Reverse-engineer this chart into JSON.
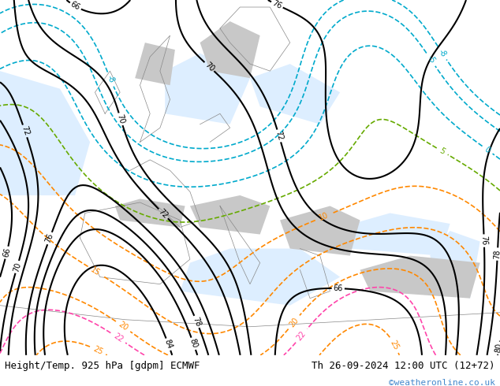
{
  "title_left": "Height/Temp. 925 hPa [gdpm] ECMWF",
  "title_right": "Th 26-09-2024 12:00 UTC (12+72)",
  "watermark": "©weatheronline.co.uk",
  "bg_color": "#e8f5c8",
  "fig_width": 6.34,
  "fig_height": 4.9,
  "dpi": 100,
  "bottom_bar_color": "#ffffff",
  "bottom_bar_height": 0.08,
  "title_fontsize": 9,
  "watermark_color": "#4488cc",
  "watermark_fontsize": 8,
  "map_bg_green": "#c8e896",
  "map_bg_gray": "#c8c8c8",
  "contour_black_color": "#000000",
  "contour_orange_color": "#ff8800",
  "contour_cyan_color": "#00aacc",
  "contour_green_color": "#66aa00",
  "contour_red_color": "#cc0033",
  "contour_pink_color": "#ff44aa",
  "contour_blue_color": "#0066ff"
}
